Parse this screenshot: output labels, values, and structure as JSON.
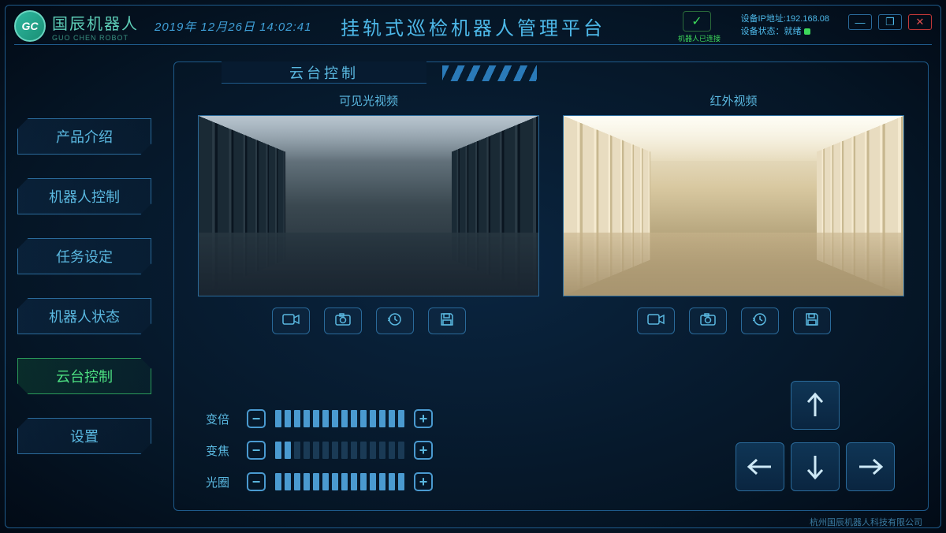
{
  "logo": {
    "badge": "GC",
    "cn": "国辰机器人",
    "en": "GUO CHEN ROBOT"
  },
  "datetime": "2019年 12月26日 14:02:41",
  "title": "挂轨式巡检机器人管理平台",
  "connection": {
    "label": "机器人已连接",
    "color": "#3dd85a"
  },
  "device": {
    "ip_label": "设备IP地址:",
    "ip": "192.168.08",
    "state_label": "设备状态：",
    "state": "就绪"
  },
  "window_controls": {
    "minimize": "—",
    "maximize": "❐",
    "close": "✕"
  },
  "sidebar": {
    "items": [
      {
        "label": "产品介绍",
        "active": false
      },
      {
        "label": "机器人控制",
        "active": false
      },
      {
        "label": "任务设定",
        "active": false
      },
      {
        "label": "机器人状态",
        "active": false
      },
      {
        "label": "云台控制",
        "active": true
      },
      {
        "label": "设置",
        "active": false
      }
    ]
  },
  "panel": {
    "title": "云台控制",
    "videos": [
      {
        "label": "可见光视频",
        "tint": "normal"
      },
      {
        "label": "红外视频",
        "tint": "ir"
      }
    ],
    "tools": [
      {
        "name": "record-icon",
        "glyph": "video"
      },
      {
        "name": "snapshot-icon",
        "glyph": "camera"
      },
      {
        "name": "replay-icon",
        "glyph": "history"
      },
      {
        "name": "save-icon",
        "glyph": "save"
      }
    ],
    "sliders": [
      {
        "label": "变倍",
        "value": 14,
        "max": 14
      },
      {
        "label": "变焦",
        "value": 2,
        "max": 14
      },
      {
        "label": "光圈",
        "value": 14,
        "max": 14
      }
    ]
  },
  "footer": "杭州国辰机器人科技有限公司",
  "colors": {
    "bg_center": "#0a2540",
    "bg_edge": "#020a15",
    "border": "#1e5a8a",
    "text": "#4db8e8",
    "active": "#4de082",
    "tick_on": "#4a9ad0",
    "tick_off": "#1a3a55"
  }
}
